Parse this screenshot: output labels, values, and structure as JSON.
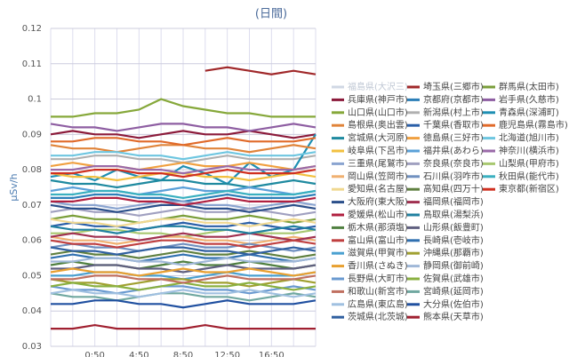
{
  "chart_data": {
    "type": "line",
    "title": "(日間)",
    "y_label": "μSv/h",
    "categories": [
      null,
      null,
      "0:50",
      null,
      "4:50",
      null,
      "8:50",
      null,
      "12:50",
      null,
      "16:50",
      null,
      null
    ],
    "ylim": [
      0.03,
      0.12
    ],
    "yticks": [
      0.03,
      0.04,
      0.05,
      0.06,
      0.07,
      0.08,
      0.09,
      0.1,
      0.11,
      0.12
    ],
    "grid": true,
    "series": [
      {
        "name": "福島県(大沢三)",
        "color": "#b8c8dc",
        "hidden": true
      },
      {
        "name": "埼玉県(三郷市)",
        "color": "#a0282a",
        "values": [
          null,
          null,
          null,
          null,
          null,
          null,
          null,
          0.108,
          0.109,
          0.108,
          0.107,
          0.108,
          0.107
        ]
      },
      {
        "name": "群馬県(太田市)",
        "color": "#7a9e3a",
        "values": [
          0.066,
          0.067,
          0.066,
          0.066,
          0.065,
          0.066,
          0.067,
          0.066,
          0.066,
          0.067,
          0.066,
          0.065,
          0.066
        ]
      },
      {
        "name": "兵庫県(神戸市)",
        "color": "#8b1a3a",
        "values": [
          0.09,
          0.091,
          0.09,
          0.09,
          0.089,
          0.09,
          0.091,
          0.09,
          0.09,
          0.091,
          0.09,
          0.089,
          0.09
        ]
      },
      {
        "name": "京都府(京都市)",
        "color": "#2c7fb8",
        "values": [
          0.072,
          0.072,
          0.073,
          0.073,
          0.072,
          0.072,
          0.071,
          0.072,
          0.073,
          0.072,
          0.072,
          0.072,
          0.073
        ]
      },
      {
        "name": "岩手県(久慈市)",
        "color": "#8e5ea2",
        "values": [
          0.093,
          0.092,
          0.092,
          0.091,
          0.092,
          0.093,
          0.093,
          0.092,
          0.092,
          0.091,
          0.092,
          0.093,
          0.092
        ]
      },
      {
        "name": "山口県(山口市)",
        "color": "#86a83a",
        "values": [
          0.095,
          0.095,
          0.096,
          0.096,
          0.097,
          0.1,
          0.098,
          0.097,
          0.096,
          0.096,
          0.095,
          0.095,
          0.095
        ]
      },
      {
        "name": "新潟県(村上市)",
        "color": "#b0b0b0",
        "values": [
          0.083,
          0.083,
          0.084,
          0.084,
          0.083,
          0.083,
          0.082,
          0.083,
          0.084,
          0.083,
          0.083,
          0.083,
          0.084
        ]
      },
      {
        "name": "青森県(深浦町)",
        "color": "#1e8fb3",
        "values": [
          0.078,
          0.079,
          0.077,
          0.08,
          0.078,
          0.077,
          0.081,
          0.079,
          0.076,
          0.082,
          0.078,
          0.08,
          0.09
        ]
      },
      {
        "name": "島根県(奥出雲)",
        "color": "#e0843a",
        "values": [
          0.087,
          0.086,
          0.086,
          0.085,
          0.086,
          0.087,
          0.087,
          0.086,
          0.086,
          0.085,
          0.086,
          0.087,
          0.086
        ]
      },
      {
        "name": "千葉県(香取市)",
        "color": "#2a5fa8",
        "values": [
          0.064,
          0.065,
          0.064,
          0.064,
          0.063,
          0.064,
          0.065,
          0.064,
          0.064,
          0.065,
          0.064,
          0.063,
          0.064
        ]
      },
      {
        "name": "鹿児島県(霧島市)",
        "color": "#e06a2a",
        "values": [
          0.088,
          0.088,
          0.089,
          0.089,
          0.088,
          0.088,
          0.087,
          0.088,
          0.089,
          0.088,
          0.088,
          0.088,
          0.089
        ]
      },
      {
        "name": "宮城県(大河原)",
        "color": "#1f8aa0",
        "values": [
          0.077,
          0.076,
          0.076,
          0.075,
          0.076,
          0.077,
          0.077,
          0.076,
          0.076,
          0.075,
          0.076,
          0.077,
          0.076
        ]
      },
      {
        "name": "徳島県(三好市)",
        "color": "#f0a040",
        "values": [
          0.081,
          0.082,
          0.081,
          0.081,
          0.08,
          0.081,
          0.082,
          0.081,
          0.081,
          0.082,
          0.081,
          0.08,
          0.081
        ]
      },
      {
        "name": "北海道(旭川市)",
        "color": "#6ec6e0",
        "values": [
          0.084,
          0.084,
          0.085,
          0.085,
          0.084,
          0.084,
          0.083,
          0.084,
          0.085,
          0.084,
          0.084,
          0.084,
          0.085
        ]
      },
      {
        "name": "岐阜県(下呂市)",
        "color": "#f2c040",
        "values": [
          0.079,
          0.078,
          0.078,
          0.077,
          0.078,
          0.079,
          0.079,
          0.078,
          0.078,
          0.077,
          0.078,
          0.079,
          0.078
        ]
      },
      {
        "name": "福井県(あわら)",
        "color": "#5aa0d8",
        "values": [
          0.074,
          0.075,
          0.074,
          0.074,
          0.073,
          0.074,
          0.075,
          0.074,
          0.074,
          0.075,
          0.074,
          0.073,
          0.074
        ]
      },
      {
        "name": "神奈川(横浜市)",
        "color": "#9a6aa8",
        "values": [
          0.08,
          0.08,
          0.081,
          0.081,
          0.08,
          0.08,
          0.079,
          0.08,
          0.081,
          0.08,
          0.08,
          0.08,
          0.081
        ]
      },
      {
        "name": "三重県(尾鷲市)",
        "color": "#8aa4d0",
        "values": [
          0.071,
          0.07,
          0.07,
          0.069,
          0.07,
          0.071,
          0.071,
          0.07,
          0.07,
          0.069,
          0.07,
          0.071,
          0.07
        ]
      },
      {
        "name": "奈良県(奈良市)",
        "color": "#a0a0c0",
        "values": [
          0.068,
          0.069,
          0.068,
          0.068,
          0.067,
          0.068,
          0.069,
          0.068,
          0.068,
          0.069,
          0.068,
          0.067,
          0.068
        ]
      },
      {
        "name": "山梨県(甲府市)",
        "color": "#a8c870",
        "values": [
          0.062,
          0.062,
          0.063,
          0.063,
          0.062,
          0.062,
          0.061,
          0.062,
          0.063,
          0.062,
          0.062,
          0.062,
          0.063
        ]
      },
      {
        "name": "岡山県(笠岡市)",
        "color": "#f0b070",
        "values": [
          0.061,
          0.06,
          0.06,
          0.059,
          0.06,
          0.061,
          0.061,
          0.06,
          0.06,
          0.059,
          0.06,
          0.061,
          0.06
        ]
      },
      {
        "name": "石川県(羽咋市)",
        "color": "#7090c0",
        "values": [
          0.058,
          0.059,
          0.058,
          0.058,
          0.057,
          0.058,
          0.059,
          0.058,
          0.058,
          0.059,
          0.058,
          0.057,
          0.058
        ]
      },
      {
        "name": "秋田県(能代市)",
        "color": "#3ab0c0",
        "values": [
          0.073,
          0.073,
          0.074,
          0.074,
          0.073,
          0.073,
          0.072,
          0.073,
          0.074,
          0.073,
          0.073,
          0.073,
          0.074
        ]
      },
      {
        "name": "愛知県(名古屋)",
        "color": "#f0d890",
        "values": [
          0.066,
          0.065,
          0.065,
          0.064,
          0.065,
          0.066,
          0.066,
          0.065,
          0.065,
          0.064,
          0.065,
          0.066,
          0.065
        ]
      },
      {
        "name": "高知県(四万十)",
        "color": "#608040",
        "values": [
          0.056,
          0.057,
          0.056,
          0.056,
          0.055,
          0.056,
          0.057,
          0.056,
          0.056,
          0.057,
          0.056,
          0.055,
          0.056
        ]
      },
      {
        "name": "東京都(新宿区)",
        "color": "#d03020",
        "values": [
          0.079,
          0.079,
          0.08,
          0.08,
          0.079,
          0.079,
          0.078,
          0.079,
          0.08,
          0.079,
          0.079,
          0.079,
          0.08
        ]
      },
      {
        "name": "大阪府(東大阪)",
        "color": "#2b4f8a",
        "values": [
          0.07,
          0.069,
          0.069,
          0.068,
          0.069,
          0.07,
          0.07,
          0.069,
          0.069,
          0.068,
          0.069,
          0.07,
          0.069
        ]
      },
      {
        "name": "福岡県(福岡市)",
        "color": "#a03050",
        "values": [
          0.061,
          0.062,
          0.061,
          0.061,
          0.06,
          0.061,
          0.062,
          0.061,
          0.061,
          0.062,
          0.061,
          0.06,
          0.061
        ]
      },
      {
        "name": "愛媛県(松山市)",
        "color": "#b02040",
        "values": [
          0.071,
          0.071,
          0.072,
          0.072,
          0.071,
          0.071,
          0.07,
          0.071,
          0.072,
          0.071,
          0.071,
          0.071,
          0.072
        ]
      },
      {
        "name": "鳥取県(湯梨浜)",
        "color": "#2080a0",
        "values": [
          0.064,
          0.063,
          0.063,
          0.062,
          0.063,
          0.064,
          0.064,
          0.063,
          0.063,
          0.062,
          0.063,
          0.064,
          0.063
        ]
      },
      {
        "name": "栃木県(那須塩)",
        "color": "#508040",
        "values": [
          0.053,
          0.054,
          0.053,
          0.053,
          0.052,
          0.053,
          0.054,
          0.053,
          0.053,
          0.054,
          0.053,
          0.052,
          0.053
        ]
      },
      {
        "name": "山形県(飯豊町)",
        "color": "#606080",
        "values": [
          0.052,
          0.052,
          0.053,
          0.053,
          0.052,
          0.052,
          0.051,
          0.052,
          0.053,
          0.052,
          0.052,
          0.052,
          0.053
        ]
      },
      {
        "name": "富山県(富山市)",
        "color": "#c04040",
        "values": [
          0.06,
          0.059,
          0.059,
          0.058,
          0.059,
          0.06,
          0.06,
          0.059,
          0.059,
          0.058,
          0.059,
          0.06,
          0.059
        ]
      },
      {
        "name": "長崎県(壱岐市)",
        "color": "#3070b0",
        "values": [
          0.055,
          0.056,
          0.055,
          0.055,
          0.054,
          0.055,
          0.056,
          0.055,
          0.055,
          0.056,
          0.055,
          0.054,
          0.055
        ]
      },
      {
        "name": "滋賀県(甲賀市)",
        "color": "#4aa0d0",
        "values": [
          0.05,
          0.05,
          0.051,
          0.051,
          0.05,
          0.05,
          0.049,
          0.05,
          0.051,
          0.05,
          0.05,
          0.05,
          0.051
        ]
      },
      {
        "name": "沖縄県(那覇市)",
        "color": "#a0a030",
        "values": [
          0.049,
          0.048,
          0.048,
          0.047,
          0.048,
          0.049,
          0.049,
          0.048,
          0.048,
          0.047,
          0.048,
          0.049,
          0.048
        ]
      },
      {
        "name": "香川県(さぬき)",
        "color": "#e8a030",
        "values": [
          0.051,
          0.052,
          0.051,
          0.051,
          0.05,
          0.051,
          0.052,
          0.051,
          0.051,
          0.052,
          0.051,
          0.05,
          0.051
        ]
      },
      {
        "name": "静岡県(御前崎)",
        "color": "#a0b8d8",
        "values": [
          0.054,
          0.054,
          0.055,
          0.055,
          0.054,
          0.054,
          0.053,
          0.054,
          0.055,
          0.054,
          0.054,
          0.054,
          0.055
        ]
      },
      {
        "name": "長野県(大町市)",
        "color": "#6a9ad0",
        "values": [
          0.047,
          0.046,
          0.046,
          0.045,
          0.046,
          0.047,
          0.047,
          0.046,
          0.046,
          0.045,
          0.046,
          0.047,
          0.046
        ]
      },
      {
        "name": "佐賀県(武雄市)",
        "color": "#8ab040",
        "values": [
          0.047,
          0.048,
          0.047,
          0.047,
          0.046,
          0.047,
          0.048,
          0.047,
          0.047,
          0.048,
          0.047,
          0.046,
          0.047
        ]
      },
      {
        "name": "和歌山(新宮市)",
        "color": "#c07060",
        "values": [
          0.049,
          0.049,
          0.05,
          0.05,
          0.049,
          0.049,
          0.048,
          0.049,
          0.05,
          0.049,
          0.049,
          0.049,
          0.05
        ]
      },
      {
        "name": "宮崎県(延岡市)",
        "color": "#70a8a0",
        "values": [
          0.045,
          0.044,
          0.044,
          0.043,
          0.044,
          0.045,
          0.045,
          0.044,
          0.044,
          0.043,
          0.044,
          0.045,
          0.044
        ]
      },
      {
        "name": "広島県(東広島)",
        "color": "#a0c0e0",
        "values": [
          0.045,
          0.046,
          0.045,
          0.045,
          0.044,
          0.045,
          0.046,
          0.045,
          0.045,
          0.046,
          0.045,
          0.044,
          0.045
        ]
      },
      {
        "name": "大分県(佐伯市)",
        "color": "#2050a0",
        "values": [
          0.042,
          0.042,
          0.043,
          0.043,
          0.042,
          0.042,
          0.041,
          0.042,
          0.043,
          0.042,
          0.042,
          0.042,
          0.043
        ]
      },
      {
        "name": "茨城県(北茨城)",
        "color": "#3060a0",
        "values": [
          0.058,
          0.057,
          0.057,
          0.056,
          0.057,
          0.058,
          0.058,
          0.057,
          0.057,
          0.056,
          0.057,
          0.058,
          0.057
        ]
      },
      {
        "name": "熊本県(天草市)",
        "color": "#a02030",
        "values": [
          0.035,
          0.035,
          0.036,
          0.035,
          0.035,
          0.035,
          0.035,
          0.036,
          0.035,
          0.035,
          0.035,
          0.035,
          0.035
        ]
      }
    ]
  }
}
